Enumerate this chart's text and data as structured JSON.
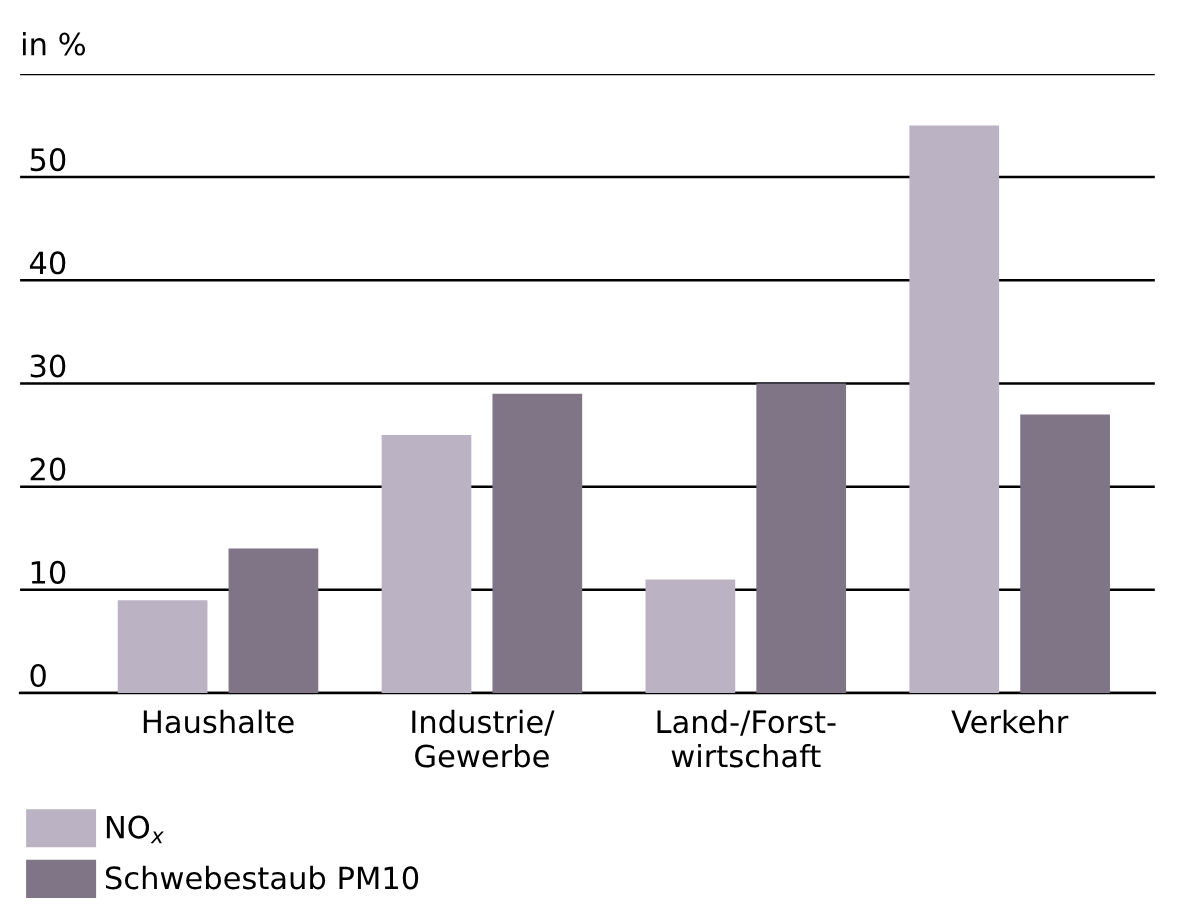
{
  "chart_data": {
    "type": "bar",
    "ylabel": "in %",
    "categories": [
      "Haushalte",
      "Industrie/\nGewerbe",
      "Land-/Forst-\nwirtschaft",
      "Verkehr"
    ],
    "series": [
      {
        "name": "NO$_{x}$",
        "color": "#bbb3c3",
        "values": [
          9,
          25,
          11,
          55
        ]
      },
      {
        "name": "Schwebestaub PM10",
        "color": "#807487",
        "values": [
          14,
          29,
          30,
          27
        ]
      }
    ],
    "ylim": [
      0,
      60
    ],
    "yticks": [
      0,
      10,
      20,
      30,
      40,
      50,
      {
        "value": 60,
        "label": null
      }
    ],
    "grid": "y",
    "legend": "bottom left"
  }
}
